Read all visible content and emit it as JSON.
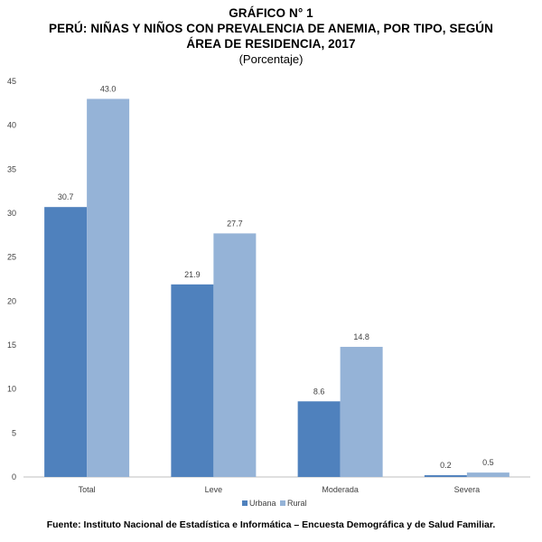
{
  "title": {
    "line1": "GRÁFICO N° 1",
    "line2": "PERÚ: NIÑAS Y NIÑOS CON PREVALENCIA DE ANEMIA, POR TIPO, SEGÚN",
    "line3": "ÁREA DE RESIDENCIA, 2017",
    "subtitle": "(Porcentaje)"
  },
  "source": "Fuente: Instituto Nacional de Estadística e Informática – Encuesta Demográfica y de Salud Familiar.",
  "colors": {
    "urbana": "#4f81bd",
    "rural": "#95b3d7",
    "axis": "#bfbfbf"
  },
  "chart_data": {
    "type": "bar",
    "categories": [
      "Total",
      "Leve",
      "Moderada",
      "Severa"
    ],
    "series": [
      {
        "name": "Urbana",
        "values": [
          30.7,
          21.9,
          8.6,
          0.2
        ]
      },
      {
        "name": "Rural",
        "values": [
          43.0,
          27.7,
          14.8,
          0.5
        ]
      }
    ],
    "data_labels": [
      [
        "30.7",
        "21.9",
        "8.6",
        "0.2"
      ],
      [
        "43.0",
        "27.7",
        "14.8",
        "0.5"
      ]
    ],
    "ylim": [
      0,
      45
    ],
    "yticks": [
      0,
      5,
      10,
      15,
      20,
      25,
      30,
      35,
      40,
      45
    ],
    "grid": false,
    "legend": "bottom-center"
  }
}
